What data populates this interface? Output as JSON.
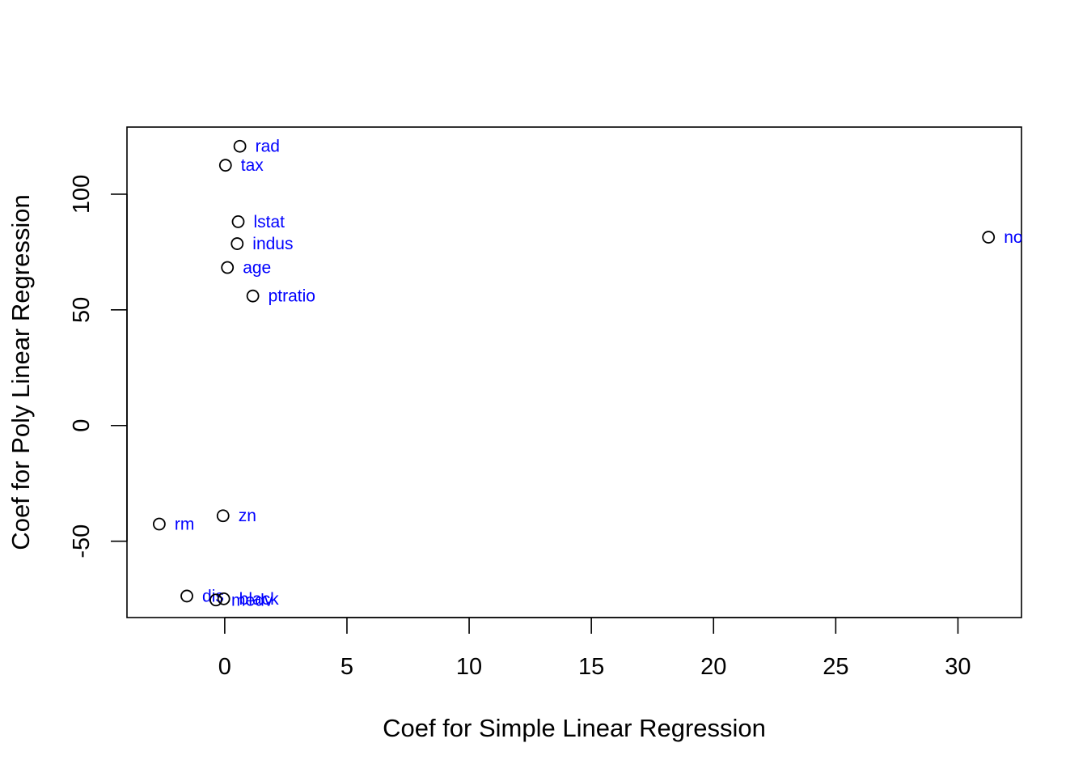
{
  "chart_data": {
    "type": "scatter",
    "xlabel": "Coef for Simple Linear Regression",
    "ylabel": "Coef for Poly Linear Regression",
    "xlim": [
      -4.0,
      32.6
    ],
    "ylim": [
      -83.0,
      129.0
    ],
    "x_ticks": [
      0,
      5,
      10,
      15,
      20,
      25,
      30
    ],
    "y_ticks": [
      -50,
      0,
      50,
      100
    ],
    "grid": false,
    "label_color": "#0000ff",
    "points": [
      {
        "label": "zn",
        "x": -0.07,
        "y": -39.0
      },
      {
        "label": "indus",
        "x": 0.51,
        "y": 78.6
      },
      {
        "label": "nox",
        "x": 31.25,
        "y": 81.4
      },
      {
        "label": "rm",
        "x": -2.68,
        "y": -42.6
      },
      {
        "label": "age",
        "x": 0.11,
        "y": 68.3
      },
      {
        "label": "dis",
        "x": -1.55,
        "y": -73.7
      },
      {
        "label": "rad",
        "x": 0.62,
        "y": 120.7
      },
      {
        "label": "tax",
        "x": 0.03,
        "y": 112.5
      },
      {
        "label": "ptratio",
        "x": 1.15,
        "y": 56.0
      },
      {
        "label": "black",
        "x": -0.04,
        "y": -74.9
      },
      {
        "label": "lstat",
        "x": 0.55,
        "y": 88.1
      },
      {
        "label": "medv",
        "x": -0.36,
        "y": -75.4
      }
    ]
  }
}
